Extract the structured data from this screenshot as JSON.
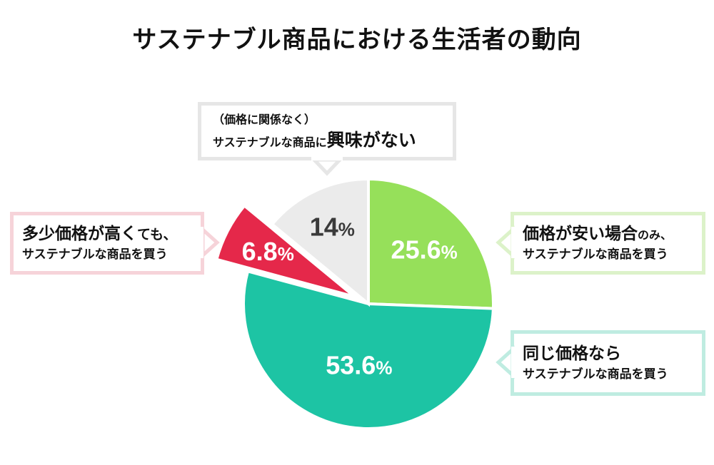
{
  "title": "サステナブル商品における生活者の動向",
  "colors": {
    "same_price": "#1dc4a4",
    "cheaper": "#96e05a",
    "no_interest": "#ebebeb",
    "higher_price": "#e5284a"
  },
  "chart_data": {
    "type": "pie",
    "title": "サステナブル商品における生活者の動向",
    "slices": [
      {
        "label": "価格が安い場合のみ、サステナブルな商品を買う",
        "value": 25.6,
        "display": "25.6",
        "color": "#96e05a"
      },
      {
        "label": "同じ価格ならサステナブルな商品を買う",
        "value": 53.6,
        "display": "53.6",
        "color": "#1dc4a4"
      },
      {
        "label": "多少価格が高くても、サステナブルな商品を買う",
        "value": 6.8,
        "display": "6.8",
        "color": "#e5284a",
        "exploded": true
      },
      {
        "label": "（価格に関係なく）サステナブルな商品に興味がない",
        "value": 14,
        "display": "14",
        "color": "#ebebeb"
      }
    ],
    "unit": "%"
  },
  "callouts": {
    "cheaper": {
      "line1_big": "価格が安い場合",
      "line1_small": "のみ、",
      "line2": "サステナブルな商品を買う"
    },
    "same_price": {
      "line1": "同じ価格なら",
      "line2": "サステナブルな商品を買う"
    },
    "higher_price": {
      "line1_big": "多少価格が高く",
      "line1_small": "ても、",
      "line2": "サステナブルな商品を買う"
    },
    "no_interest": {
      "line1": "（価格に関係なく）",
      "line2_small": "サステナブルな商品に",
      "line2_big": "興味がない"
    }
  }
}
